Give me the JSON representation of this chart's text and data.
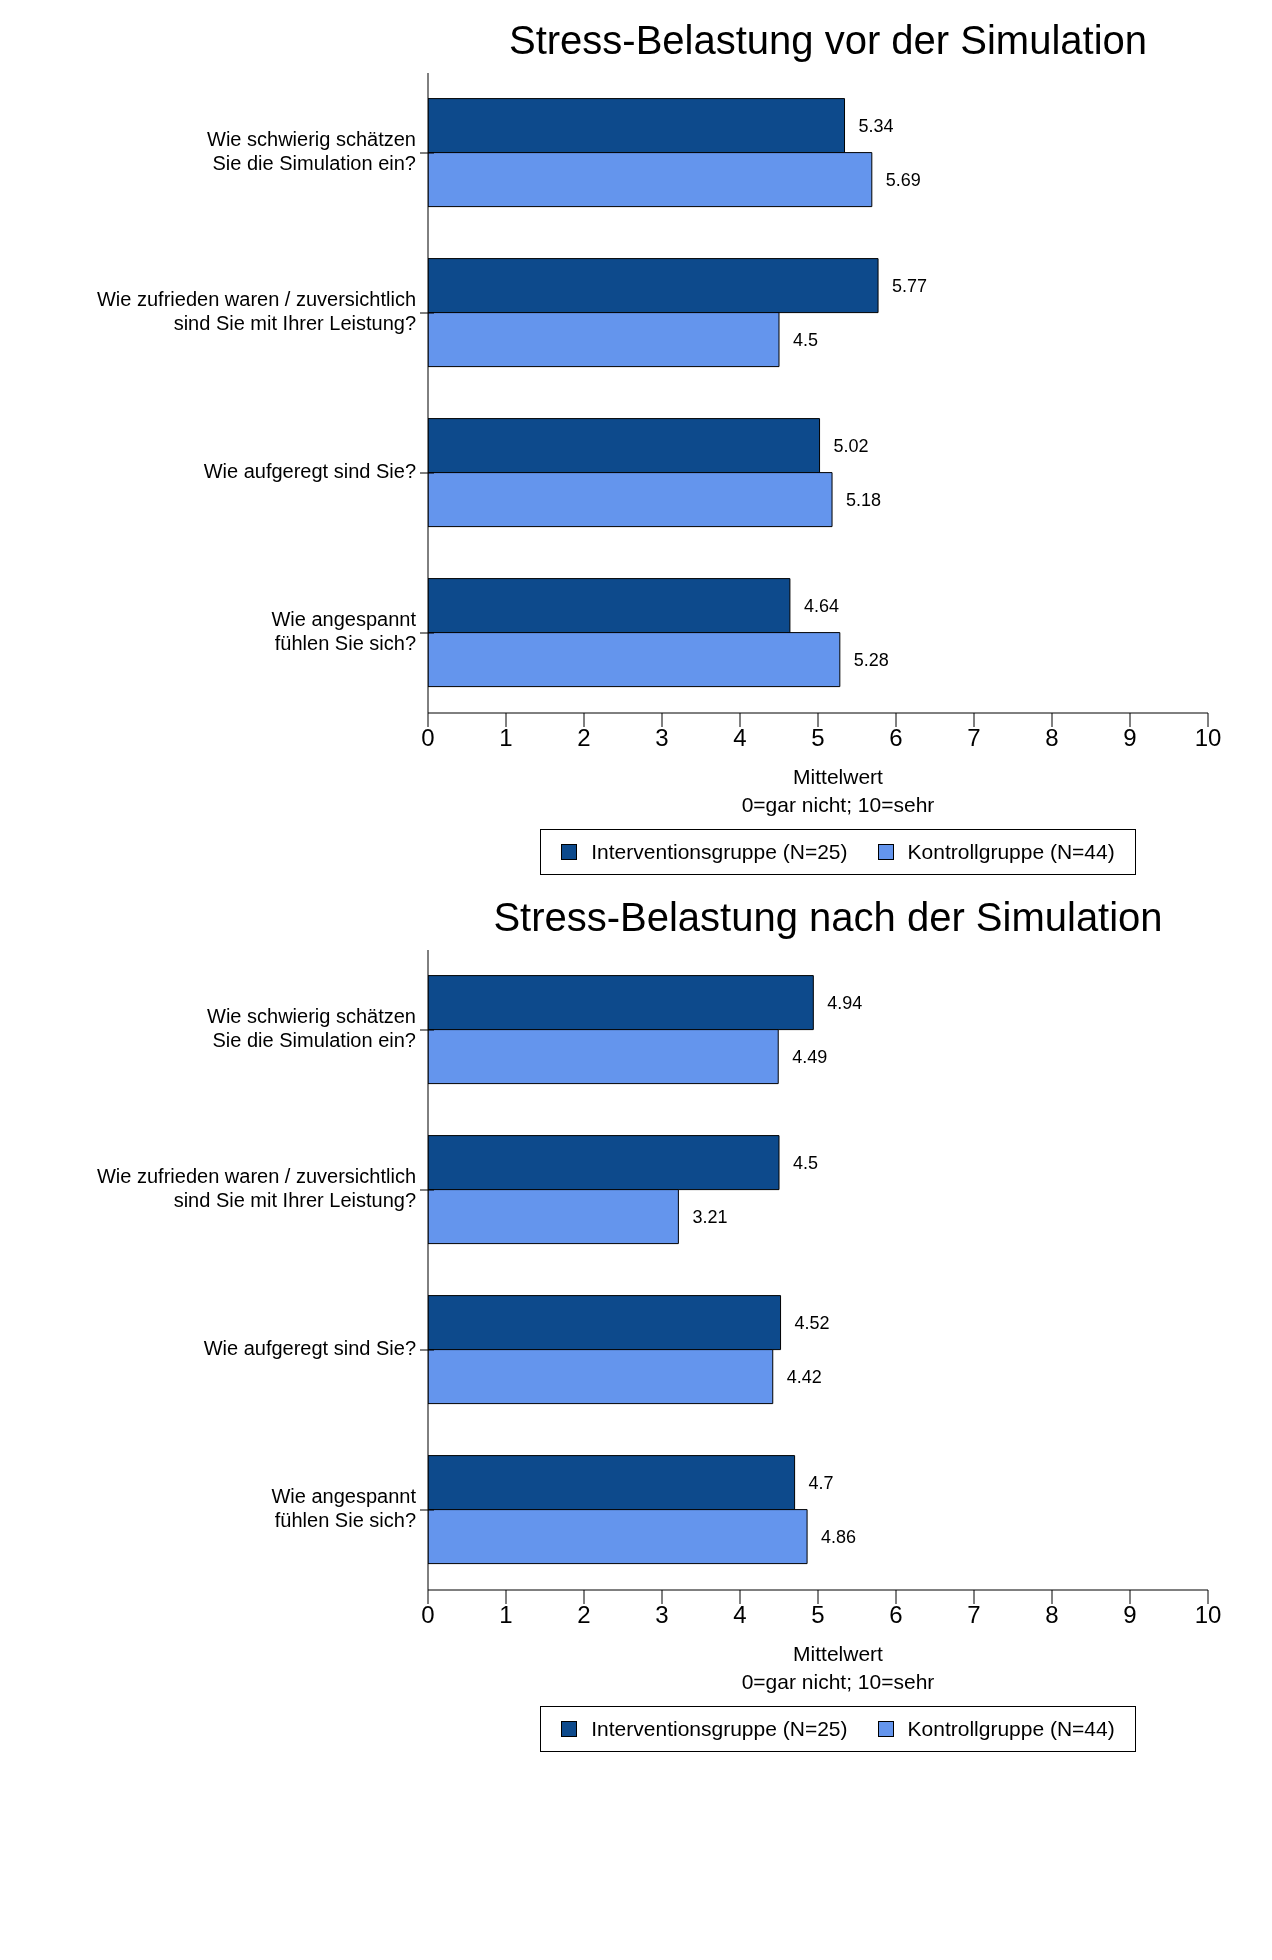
{
  "chart_data": [
    {
      "type": "bar",
      "orientation": "horizontal",
      "title": "Stress-Belastung vor der Simulation",
      "categories": [
        "Wie schwierig schätzen Sie die Simulation ein?",
        "Wie zufrieden waren / zuversichtlich sind Sie mit Ihrer Leistung?",
        "Wie aufgeregt sind Sie?",
        "Wie angespannt fühlen Sie sich?"
      ],
      "series": [
        {
          "name": "Interventionsgruppe (N=25)",
          "color": "#0d4a8c",
          "values": [
            5.34,
            5.77,
            5.02,
            4.64
          ]
        },
        {
          "name": "Kontrollgruppe (N=44)",
          "color": "#6495ed",
          "values": [
            5.69,
            4.5,
            5.18,
            5.28
          ]
        }
      ],
      "xlim": [
        0,
        10
      ],
      "xticks": [
        0,
        1,
        2,
        3,
        4,
        5,
        6,
        7,
        8,
        9,
        10
      ],
      "xlabel": "Mittelwert\n0=gar nicht; 10=sehr",
      "data_labels": true,
      "legend": "bottom",
      "grid": false
    },
    {
      "type": "bar",
      "orientation": "horizontal",
      "title": "Stress-Belastung nach der Simulation",
      "categories": [
        "Wie schwierig schätzen Sie die Simulation ein?",
        "Wie zufrieden waren / zuversichtlich sind Sie mit Ihrer Leistung?",
        "Wie aufgeregt sind Sie?",
        "Wie angespannt fühlen Sie sich?"
      ],
      "series": [
        {
          "name": "Interventionsgruppe (N=25)",
          "color": "#0d4a8c",
          "values": [
            4.94,
            4.5,
            4.52,
            4.7
          ]
        },
        {
          "name": "Kontrollgruppe (N=44)",
          "color": "#6495ed",
          "values": [
            4.49,
            3.21,
            4.42,
            4.86
          ]
        }
      ],
      "xlim": [
        0,
        10
      ],
      "xticks": [
        0,
        1,
        2,
        3,
        4,
        5,
        6,
        7,
        8,
        9,
        10
      ],
      "xlabel": "Mittelwert\n0=gar nicht; 10=sehr",
      "data_labels": true,
      "legend": "bottom",
      "grid": false
    }
  ]
}
